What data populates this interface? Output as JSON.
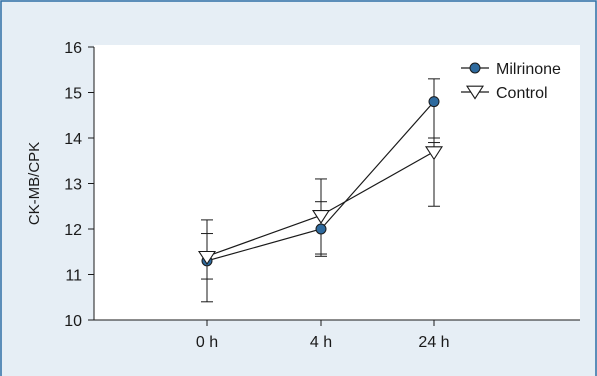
{
  "chart_data": {
    "type": "line",
    "categories": [
      "0 h",
      "4 h",
      "24 h"
    ],
    "ylabel": "CK-MB/CPK",
    "xlabel": "",
    "ylim": [
      10,
      16
    ],
    "yticks": [
      10,
      11,
      12,
      13,
      14,
      15,
      16
    ],
    "grid": false,
    "legend_position": "top-right",
    "series": [
      {
        "name": "Milrinone",
        "marker": "circle",
        "values": [
          11.3,
          12.0,
          14.8
        ],
        "error_low": [
          10.4,
          11.4,
          13.9
        ],
        "error_high": [
          11.9,
          12.6,
          15.3
        ]
      },
      {
        "name": "Control",
        "marker": "triangle-down",
        "values": [
          11.4,
          12.3,
          13.7
        ],
        "error_low": [
          10.9,
          11.45,
          12.5
        ],
        "error_high": [
          12.2,
          13.1,
          14.0
        ]
      }
    ]
  },
  "colors": {
    "background": "#e6eef5",
    "border": "#2f6fa5",
    "plot_background": "#ffffff",
    "milrinone_marker": "#2e6a9e",
    "line": "#1a1a1a"
  }
}
